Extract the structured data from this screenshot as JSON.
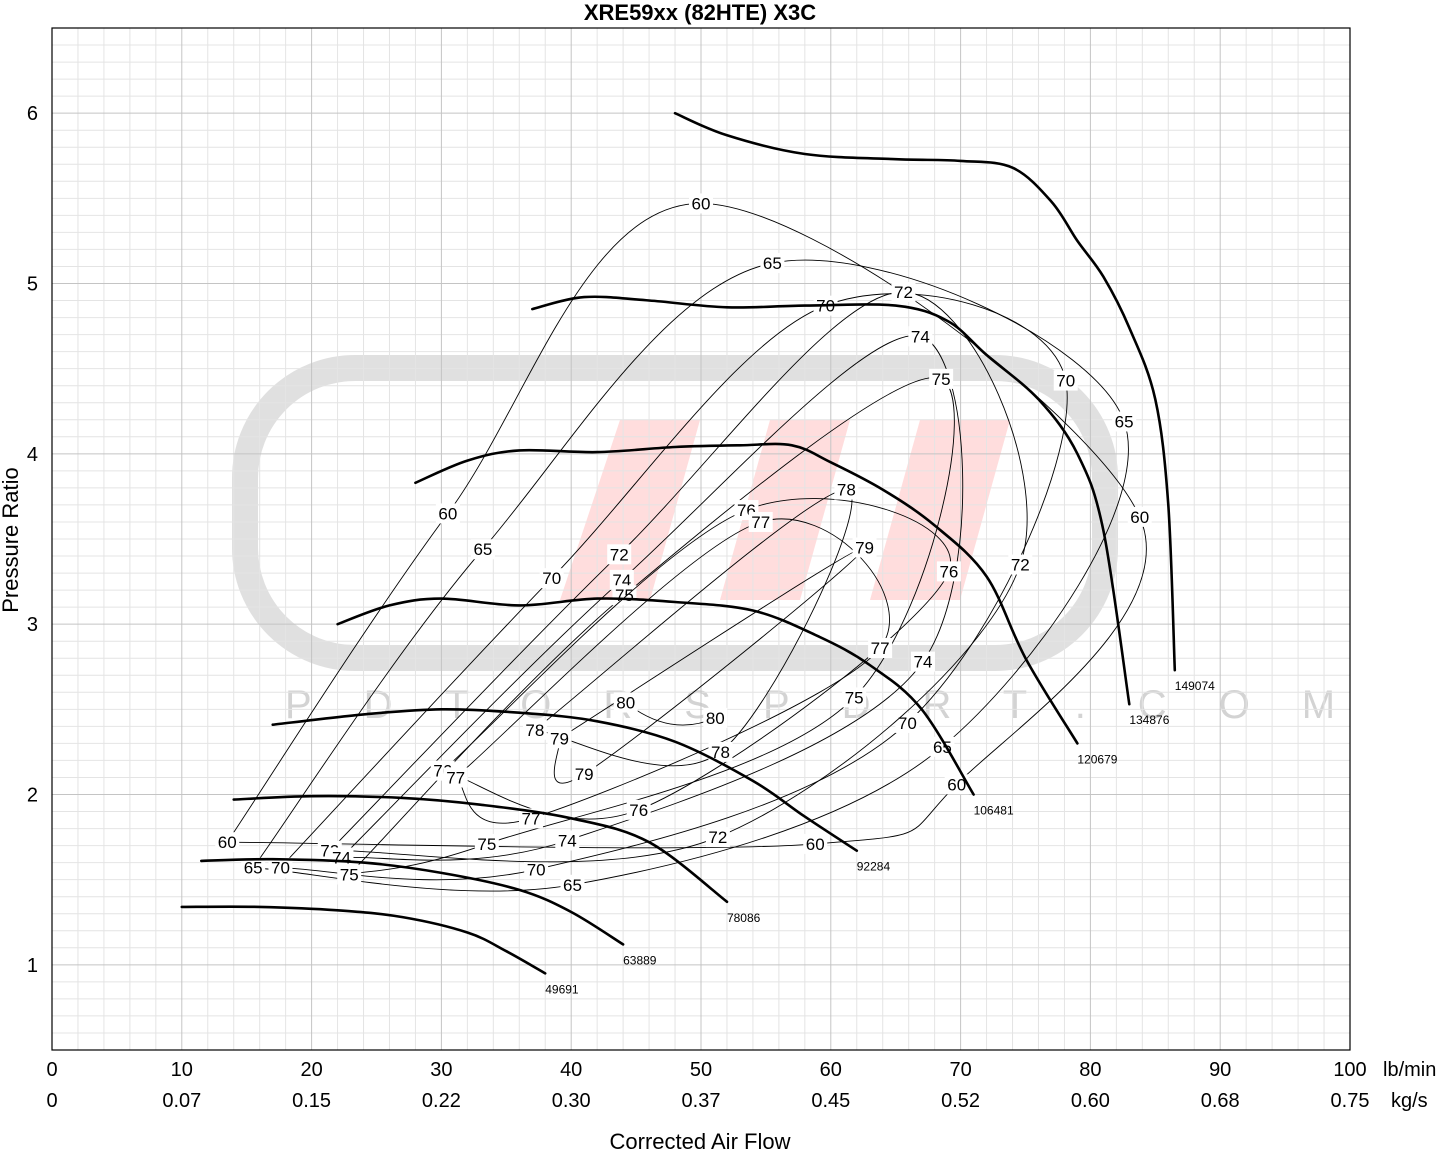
{
  "chart_data": {
    "type": "line",
    "title": "XRE59xx (82HTE) X3C",
    "xlabel": "Corrected Air Flow",
    "ylabel": "Pressure Ratio",
    "xlim": [
      0,
      100
    ],
    "ylim": [
      0.5,
      6.5
    ],
    "x_ticks": [
      0,
      10,
      20,
      30,
      40,
      50,
      60,
      70,
      80,
      90,
      100
    ],
    "x_ticks_secondary": [
      "0",
      "0.07",
      "0.15",
      "0.22",
      "0.30",
      "0.37",
      "0.45",
      "0.52",
      "0.60",
      "0.68",
      "0.75"
    ],
    "x_unit_primary": "lb/min",
    "x_unit_secondary": "kg/s",
    "y_ticks": [
      1,
      2,
      3,
      4,
      5,
      6
    ],
    "grid": true,
    "watermark": {
      "text": "PDTORSPDRT.COM",
      "colors": [
        "#d3d3d3",
        "#ffd4d4"
      ]
    },
    "speed_lines": [
      {
        "label": "49691",
        "points": [
          [
            10,
            1.34
          ],
          [
            16,
            1.34
          ],
          [
            22,
            1.32
          ],
          [
            27,
            1.28
          ],
          [
            32,
            1.19
          ],
          [
            35,
            1.08
          ],
          [
            38,
            0.95
          ]
        ]
      },
      {
        "label": "63889",
        "points": [
          [
            11.5,
            1.61
          ],
          [
            17,
            1.62
          ],
          [
            24,
            1.6
          ],
          [
            30,
            1.54
          ],
          [
            36,
            1.44
          ],
          [
            40,
            1.31
          ],
          [
            44,
            1.12
          ]
        ]
      },
      {
        "label": "78086",
        "points": [
          [
            14,
            1.97
          ],
          [
            20,
            1.99
          ],
          [
            27,
            1.98
          ],
          [
            33,
            1.94
          ],
          [
            40,
            1.86
          ],
          [
            46,
            1.72
          ],
          [
            52,
            1.37
          ]
        ]
      },
      {
        "label": "92284",
        "points": [
          [
            17,
            2.41
          ],
          [
            24,
            2.47
          ],
          [
            30,
            2.5
          ],
          [
            36,
            2.48
          ],
          [
            42,
            2.43
          ],
          [
            48,
            2.31
          ],
          [
            54,
            2.08
          ],
          [
            58,
            1.87
          ],
          [
            62,
            1.67
          ]
        ]
      },
      {
        "label": "106481",
        "points": [
          [
            22,
            3.0
          ],
          [
            26,
            3.11
          ],
          [
            30,
            3.15
          ],
          [
            36,
            3.11
          ],
          [
            42,
            3.15
          ],
          [
            48,
            3.13
          ],
          [
            54,
            3.08
          ],
          [
            59,
            2.93
          ],
          [
            63,
            2.76
          ],
          [
            67,
            2.5
          ],
          [
            71,
            2.0
          ]
        ]
      },
      {
        "label": "120679",
        "points": [
          [
            28,
            3.83
          ],
          [
            32,
            3.96
          ],
          [
            36,
            4.02
          ],
          [
            42,
            4.01
          ],
          [
            48,
            4.04
          ],
          [
            53,
            4.05
          ],
          [
            57,
            4.05
          ],
          [
            60,
            3.95
          ],
          [
            64,
            3.79
          ],
          [
            68,
            3.58
          ],
          [
            72,
            3.28
          ],
          [
            75,
            2.8
          ],
          [
            79,
            2.3
          ]
        ]
      },
      {
        "label": "134876",
        "points": [
          [
            37,
            4.85
          ],
          [
            41,
            4.92
          ],
          [
            46,
            4.9
          ],
          [
            52,
            4.86
          ],
          [
            58,
            4.87
          ],
          [
            65,
            4.87
          ],
          [
            69,
            4.78
          ],
          [
            72,
            4.58
          ],
          [
            76,
            4.32
          ],
          [
            79,
            4.0
          ],
          [
            81,
            3.55
          ],
          [
            83,
            2.53
          ]
        ]
      },
      {
        "label": "149074",
        "points": [
          [
            48,
            6.0
          ],
          [
            52,
            5.87
          ],
          [
            58,
            5.76
          ],
          [
            65,
            5.73
          ],
          [
            70,
            5.72
          ],
          [
            74,
            5.68
          ],
          [
            77,
            5.48
          ],
          [
            79,
            5.25
          ],
          [
            81,
            5.04
          ],
          [
            83,
            4.74
          ],
          [
            85,
            4.32
          ],
          [
            86,
            3.7
          ],
          [
            86.5,
            2.73
          ]
        ]
      }
    ],
    "efficiency_contours": [
      {
        "label": "60",
        "label_points": [
          [
            13.5,
            1.72
          ],
          [
            30.5,
            3.65
          ],
          [
            50,
            5.47
          ],
          [
            83.8,
            3.63
          ],
          [
            69.7,
            2.06
          ],
          [
            58.8,
            1.71
          ]
        ]
      },
      {
        "label": "65",
        "label_points": [
          [
            15.5,
            1.57
          ],
          [
            33.2,
            3.44
          ],
          [
            55.5,
            5.12
          ],
          [
            82.6,
            4.19
          ],
          [
            68.6,
            2.28
          ],
          [
            40.1,
            1.47
          ]
        ]
      },
      {
        "label": "70",
        "label_points": [
          [
            17.6,
            1.57
          ],
          [
            38.5,
            3.27
          ],
          [
            59.6,
            4.87
          ],
          [
            78.1,
            4.43
          ],
          [
            65.9,
            2.42
          ],
          [
            37.3,
            1.56
          ]
        ]
      },
      {
        "label": "72",
        "label_points": [
          [
            21.4,
            1.67
          ],
          [
            43.7,
            3.41
          ],
          [
            65.6,
            4.95
          ],
          [
            74.6,
            3.35
          ],
          [
            51.3,
            1.75
          ]
        ]
      },
      {
        "label": "74",
        "label_points": [
          [
            22.3,
            1.63
          ],
          [
            43.9,
            3.26
          ],
          [
            66.9,
            4.69
          ],
          [
            67.1,
            2.78
          ],
          [
            39.7,
            1.73
          ]
        ]
      },
      {
        "label": "75",
        "label_points": [
          [
            22.9,
            1.53
          ],
          [
            44.1,
            3.17
          ],
          [
            68.5,
            4.44
          ],
          [
            61.8,
            2.57
          ],
          [
            33.5,
            1.71
          ]
        ]
      },
      {
        "label": "76",
        "label_points": [
          [
            30.1,
            2.14
          ],
          [
            53.5,
            3.67
          ],
          [
            69.1,
            3.31
          ],
          [
            45.2,
            1.91
          ]
        ]
      },
      {
        "label": "77",
        "label_points": [
          [
            31.1,
            2.1
          ],
          [
            54.6,
            3.6
          ],
          [
            63.8,
            2.86
          ],
          [
            36.9,
            1.86
          ]
        ]
      },
      {
        "label": "78",
        "label_points": [
          [
            37.2,
            2.38
          ],
          [
            61.2,
            3.79
          ],
          [
            51.5,
            2.25
          ]
        ]
      },
      {
        "label": "79",
        "label_points": [
          [
            39.1,
            2.33
          ],
          [
            62.6,
            3.45
          ],
          [
            41.0,
            2.12
          ]
        ]
      },
      {
        "label": "80",
        "label_points": [
          [
            44.2,
            2.54
          ],
          [
            51.1,
            2.45
          ]
        ]
      }
    ]
  }
}
